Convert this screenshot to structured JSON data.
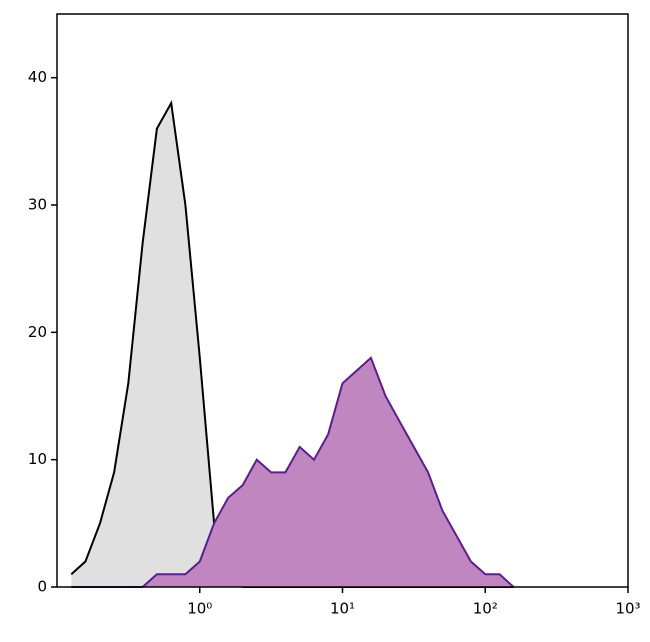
{
  "chart_data": {
    "type": "area",
    "xscale": "log",
    "x": [
      0.126,
      0.158,
      0.2,
      0.251,
      0.316,
      0.398,
      0.501,
      0.631,
      0.794,
      1,
      1.26,
      1.58,
      2,
      2.51,
      3.16,
      3.98,
      5.01,
      6.31,
      7.94,
      10,
      12.6,
      15.8,
      20,
      25.1,
      31.6,
      39.8,
      50.1,
      63.1,
      79.4,
      100,
      126,
      158
    ],
    "series": [
      {
        "color": "#e0e0e0",
        "line_color": "#000000",
        "values": [
          1,
          2,
          5,
          9,
          16,
          27,
          36,
          38,
          30,
          18,
          5,
          1,
          0,
          0,
          0,
          0,
          0,
          0,
          0,
          0,
          0,
          0,
          0,
          0,
          0,
          0,
          0,
          0,
          0,
          0,
          0,
          0
        ]
      },
      {
        "color": "#bf86c0",
        "line_color": "#5a1f8a",
        "values": [
          0,
          0,
          0,
          0,
          0,
          0,
          1,
          1,
          1,
          2,
          5,
          7,
          8,
          10,
          9,
          9,
          11,
          10,
          12,
          16,
          17,
          18,
          15,
          13,
          11,
          9,
          6,
          4,
          2,
          1,
          1,
          0
        ]
      }
    ],
    "xlim": [
      0.1,
      1000
    ],
    "xticks": [
      {
        "value": 1,
        "label": "10⁰"
      },
      {
        "value": 10,
        "label": "10¹"
      },
      {
        "value": 100,
        "label": "10²"
      },
      {
        "value": 1000,
        "label": "10³"
      }
    ],
    "ylim": [
      0,
      45
    ],
    "yticks": [
      0,
      10,
      20,
      30,
      40
    ]
  }
}
